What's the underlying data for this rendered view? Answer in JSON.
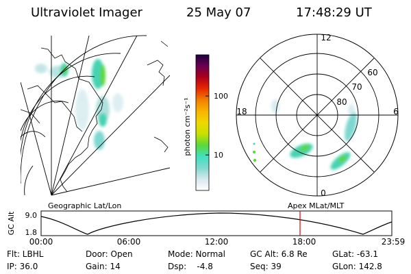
{
  "header": {
    "instrument": "Ultraviolet Imager",
    "date": "25 May 07",
    "time": "17:48:29 UT"
  },
  "colorbar": {
    "label": "photon cm⁻²s⁻¹",
    "ticks": [
      {
        "value": 100,
        "label": "100"
      },
      {
        "value": 10,
        "label": "10"
      }
    ],
    "scale": "log",
    "colors": [
      "#ffffff",
      "#d8e8ee",
      "#7fd9d0",
      "#40e0c0",
      "#5ad83a",
      "#c8e000",
      "#f0d800",
      "#f8b400",
      "#f08000",
      "#e82800",
      "#b0001a",
      "#6a0050",
      "#200040"
    ]
  },
  "left_map": {
    "label": "Geographic Lat/Lon"
  },
  "right_map": {
    "label": "Apex  MLat/MLT",
    "latitude_labels": [
      "60",
      "70",
      "80"
    ],
    "mlt_labels": {
      "top": "12",
      "bottom": "0",
      "left": "18",
      "right": "6"
    }
  },
  "altitude_plot": {
    "ylabel": "GC Alt",
    "yticks": [
      "9.0",
      "1.8"
    ],
    "xticks": [
      "00:00",
      "06:00",
      "12:00",
      "18:00",
      "23:59"
    ],
    "marker_color": "#e00000"
  },
  "info": {
    "row1": {
      "filter": "Flt: LBHL",
      "door": "Door: Open",
      "mode": "Mode: Normal",
      "gc_alt": "GC Alt: 6.8 Re",
      "glat": "GLat: -63.1"
    },
    "row2": {
      "ip": "IP: 36.0",
      "gain": "Gain: 14",
      "dsp": "Dsp:    -4.8",
      "seq": "Seq: 39",
      "glon": "GLon: 142.8"
    }
  }
}
